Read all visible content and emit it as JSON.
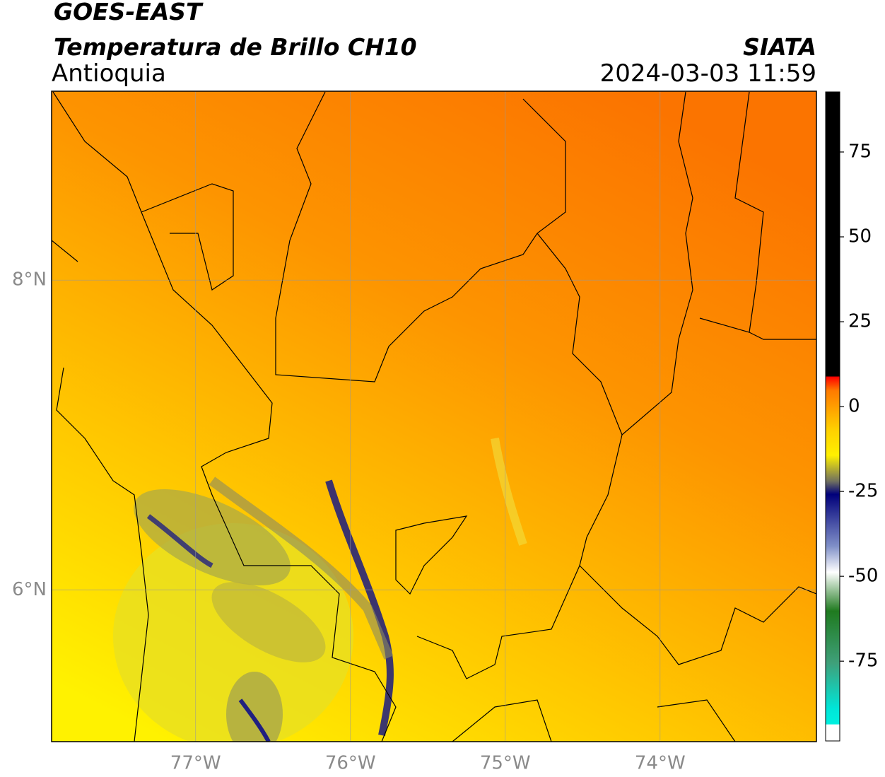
{
  "header": {
    "title": "GOES-EAST",
    "subtitle": "Temperatura de Brillo CH10",
    "region": "Antioquia",
    "source": "SIATA",
    "timestamp": "2024-03-03 11:59"
  },
  "map": {
    "lonlim": [
      -77.93,
      -72.99
    ],
    "latlim": [
      5.02,
      9.22
    ],
    "lon_ticks": [
      {
        "value": -77,
        "label": "77°W"
      },
      {
        "value": -76,
        "label": "76°W"
      },
      {
        "value": -75,
        "label": "75°W"
      },
      {
        "value": -74,
        "label": "74°W"
      }
    ],
    "lat_ticks": [
      {
        "value": 8,
        "label": "8°N"
      },
      {
        "value": 6,
        "label": "6°N"
      }
    ]
  },
  "colorbar": {
    "lim": [
      -98.5,
      92.7
    ],
    "ticks": [
      75,
      50,
      25,
      0,
      -25,
      -50,
      -75
    ]
  }
}
